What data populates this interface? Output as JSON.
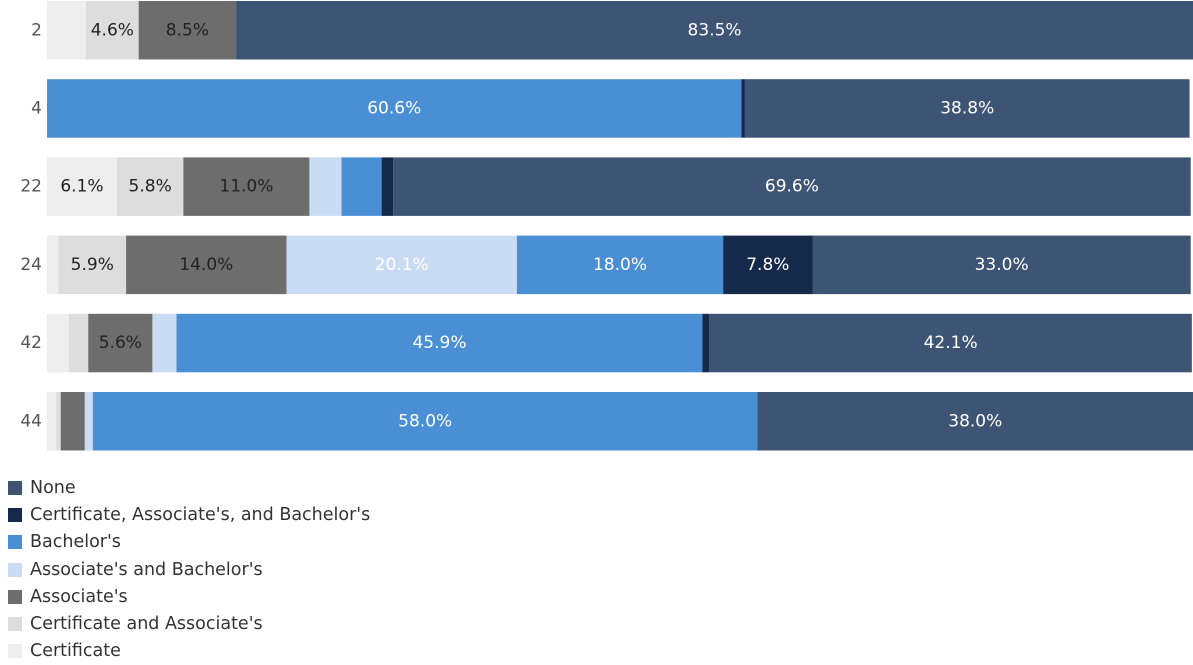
{
  "chart_data": {
    "type": "bar",
    "orientation": "horizontal",
    "stacked": true,
    "xlim": [
      0,
      100
    ],
    "legend_position": "bottom-left",
    "categories": [
      "2",
      "4",
      "22",
      "24",
      "42",
      "44"
    ],
    "series": [
      {
        "name": "Certificate",
        "color": "#eeeeee",
        "text_color": "#222222",
        "values": [
          3.4,
          0.0,
          6.1,
          1.0,
          1.9,
          0.8
        ]
      },
      {
        "name": "Certificate and Associate's",
        "color": "#dddddd",
        "text_color": "#222222",
        "values": [
          4.6,
          0.0,
          5.8,
          5.9,
          1.7,
          0.4
        ]
      },
      {
        "name": "Associate's",
        "color": "#6d6d6d",
        "text_color": "#222222",
        "values": [
          8.5,
          0.0,
          11.0,
          14.0,
          5.6,
          2.1
        ]
      },
      {
        "name": "Associate's and Bachelor's",
        "color": "#c9dcf3",
        "text_color": "#ffffff",
        "values": [
          0.0,
          0.0,
          2.8,
          20.1,
          2.1,
          0.7
        ]
      },
      {
        "name": "Bachelor's",
        "color": "#4a8fd4",
        "text_color": "#ffffff",
        "values": [
          0.0,
          60.6,
          3.5,
          18.0,
          45.9,
          58.0
        ]
      },
      {
        "name": "Certificate, Associate's, and Bachelor's",
        "color": "#152a4a",
        "text_color": "#ffffff",
        "values": [
          0.0,
          0.3,
          1.0,
          7.8,
          0.6,
          0.0
        ]
      },
      {
        "name": "None",
        "color": "#3e5475",
        "text_color": "#ffffff",
        "values": [
          83.5,
          38.8,
          69.6,
          33.0,
          42.1,
          38.0
        ]
      }
    ],
    "data_labels": [
      [
        "",
        "4.6%",
        "8.5%",
        "",
        "",
        "",
        "83.5%"
      ],
      [
        "",
        "",
        "",
        "",
        "60.6%",
        "",
        "38.8%"
      ],
      [
        "6.1%",
        "5.8%",
        "11.0%",
        "",
        "",
        "",
        "69.6%"
      ],
      [
        "",
        "5.9%",
        "14.0%",
        "20.1%",
        "18.0%",
        "7.8%",
        "33.0%"
      ],
      [
        "",
        "",
        "5.6%",
        "",
        "45.9%",
        "",
        "42.1%"
      ],
      [
        "",
        "",
        "",
        "",
        "58.0%",
        "",
        "38.0%"
      ]
    ],
    "legend_order": [
      "None",
      "Certificate, Associate's, and Bachelor's",
      "Bachelor's",
      "Associate's and Bachelor's",
      "Associate's",
      "Certificate and Associate's",
      "Certificate"
    ]
  }
}
